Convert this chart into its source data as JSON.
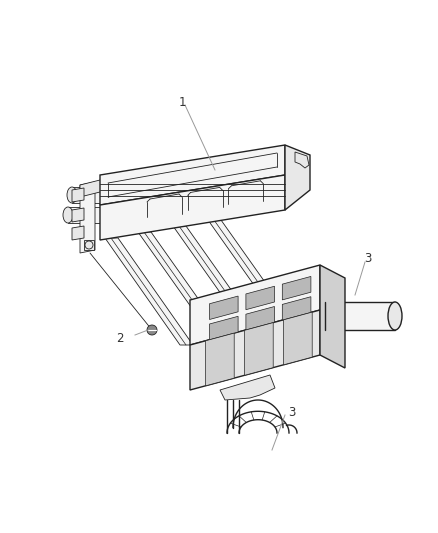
{
  "background_color": "#ffffff",
  "line_color": "#222222",
  "line_color_dark": "#111111",
  "leader_color": "#999999",
  "fill_light": "#f5f5f5",
  "fill_mid": "#e8e8e8",
  "fill_dark": "#d0d0d0",
  "fill_darkest": "#b8b8b8",
  "figsize": [
    4.38,
    5.33
  ],
  "dpi": 100,
  "label_fontsize": 8.5
}
